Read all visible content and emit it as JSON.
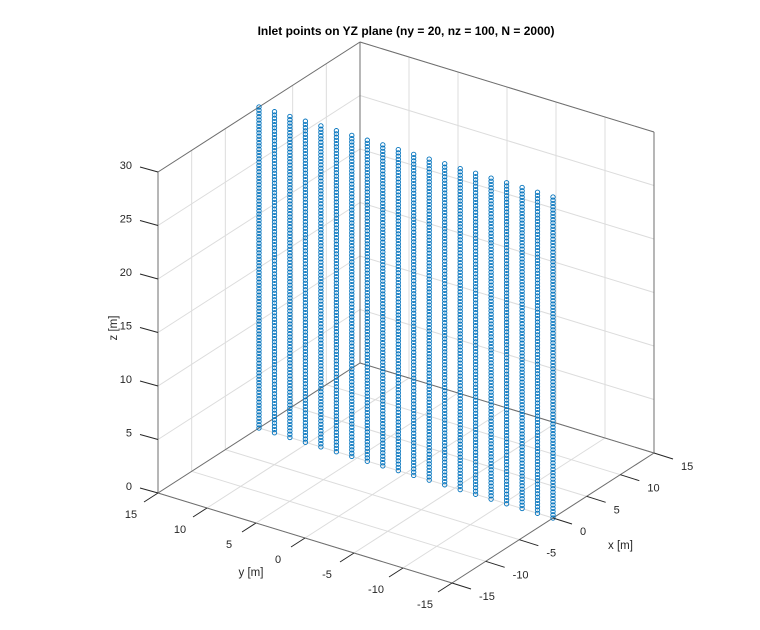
{
  "chart_data": {
    "type": "scatter3d",
    "title": "Inlet points on YZ plane (ny = 20, nz = 100, N = 2000)",
    "xlabel": "x [m]",
    "ylabel": "y [m]",
    "zlabel": "z [m]",
    "xlim": [
      -15,
      15
    ],
    "ylim": [
      -15,
      15
    ],
    "zlim": [
      0,
      30
    ],
    "xticks": [
      -15,
      -10,
      -5,
      0,
      5,
      10,
      15
    ],
    "yticks": [
      15,
      10,
      5,
      0,
      -5,
      -10,
      -15
    ],
    "zticks": [
      0,
      5,
      10,
      15,
      20,
      25,
      30
    ],
    "grid": true,
    "marker": "circle-open",
    "marker_color": "#0072BD",
    "series": [
      {
        "name": "inlet points",
        "x_const": 0,
        "ny": 20,
        "nz": 100,
        "N": 2000,
        "y_range": [
          -15,
          15
        ],
        "z_range": [
          0,
          30
        ]
      }
    ]
  },
  "colors": {
    "axis": "#6e6e6e",
    "grid": "#dcdcdc",
    "text": "#262626",
    "marker": "#0072BD"
  }
}
